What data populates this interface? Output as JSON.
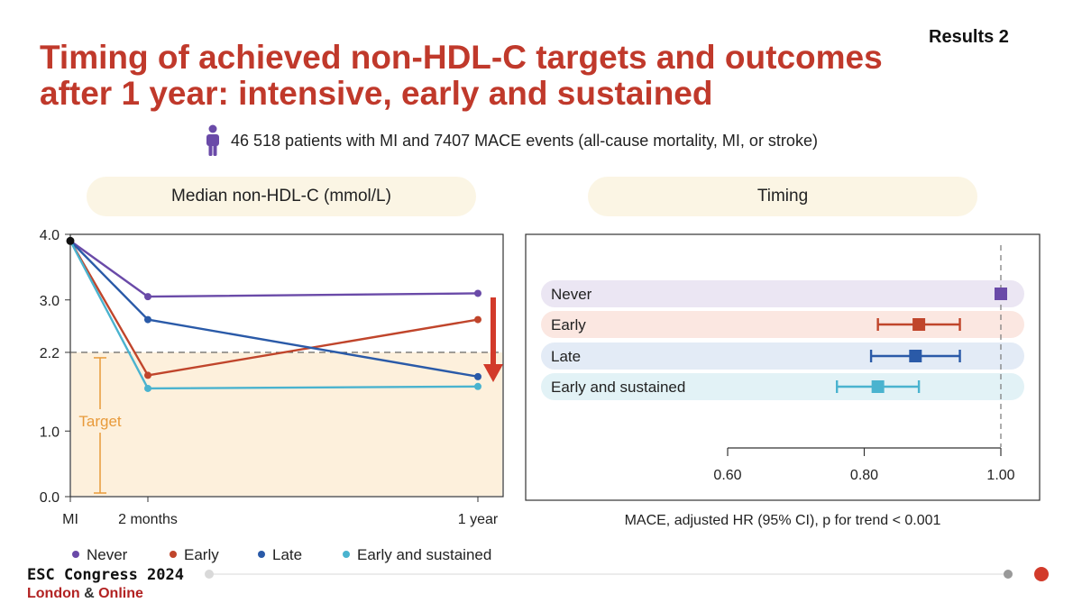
{
  "slide": {
    "results_tag": "Results 2",
    "title_line1": "Timing of achieved non-HDL-C targets and outcomes",
    "title_line2": "after 1 year: intensive, early and sustained",
    "patients_text": "46 518 patients with MI and 7407 MACE events (all-cause mortality, MI, or stroke)",
    "footer_line1": "ESC Congress 2024",
    "footer_london": "London",
    "footer_amp": "&",
    "footer_online": "Online",
    "colors": {
      "title": "#c0392b",
      "never": "#6a4aa8",
      "early": "#c0452b",
      "late": "#2a5aa8",
      "early_sustained": "#4ab3cf",
      "target": "#e89a3a"
    }
  },
  "chart_data": [
    {
      "type": "line",
      "header": "Median non-HDL-C  (mmol/L)",
      "x": [
        "MI",
        "2 months",
        "1 year"
      ],
      "yticks": [
        "0.0",
        "1.0",
        "2.2",
        "3.0",
        "4.0"
      ],
      "ylim": [
        0,
        4
      ],
      "series": [
        {
          "name": "Never",
          "values": [
            3.9,
            3.05,
            3.1
          ]
        },
        {
          "name": "Early",
          "values": [
            3.9,
            1.85,
            2.7
          ]
        },
        {
          "name": "Late",
          "values": [
            3.9,
            2.7,
            1.83
          ]
        },
        {
          "name": "Early and sustained",
          "values": [
            3.9,
            1.65,
            1.68
          ]
        }
      ],
      "reference_line": 2.2,
      "target_label": "Target",
      "legend_position": "bottom"
    },
    {
      "type": "forest",
      "header": "Timing",
      "xlabel": "MACE, adjusted HR (95% CI), p for trend  < 0.001",
      "xticks": [
        "0.60",
        "0.80",
        "1.00"
      ],
      "xlim": [
        0.6,
        1.0
      ],
      "reference_line": 1.0,
      "rows": [
        {
          "label": "Never",
          "hr": 1.0,
          "lo": 1.0,
          "hi": 1.0
        },
        {
          "label": "Early",
          "hr": 0.88,
          "lo": 0.82,
          "hi": 0.94
        },
        {
          "label": "Late",
          "hr": 0.875,
          "lo": 0.81,
          "hi": 0.94
        },
        {
          "label": "Early and sustained",
          "hr": 0.82,
          "lo": 0.76,
          "hi": 0.88
        }
      ]
    }
  ]
}
